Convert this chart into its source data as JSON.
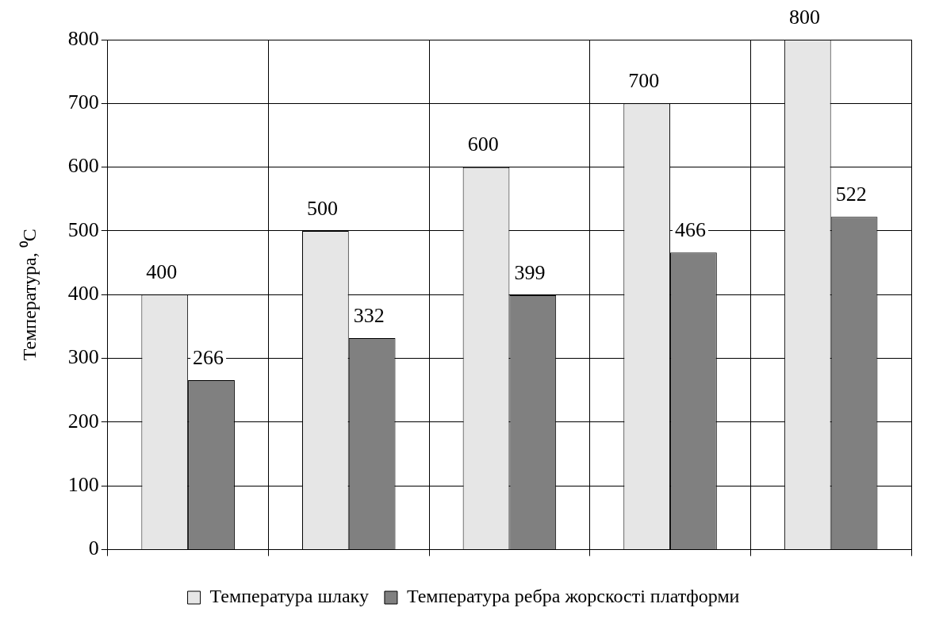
{
  "chart_data": {
    "type": "bar",
    "ylabel": "Температура, ⁰C",
    "categories": [
      null,
      null,
      null,
      null,
      null
    ],
    "series": [
      {
        "name": "Температура шлаку",
        "color": "#e6e6e6",
        "values": [
          400,
          500,
          600,
          700,
          800
        ]
      },
      {
        "name": "Температура ребра жорскості платформи",
        "color": "#808080",
        "values": [
          266,
          332,
          399,
          466,
          522
        ]
      }
    ],
    "ylim": [
      0,
      800
    ],
    "yticks": [
      0,
      100,
      200,
      300,
      400,
      500,
      600,
      700,
      800
    ],
    "grid": true,
    "legend": "bottom",
    "data_labels": true
  }
}
